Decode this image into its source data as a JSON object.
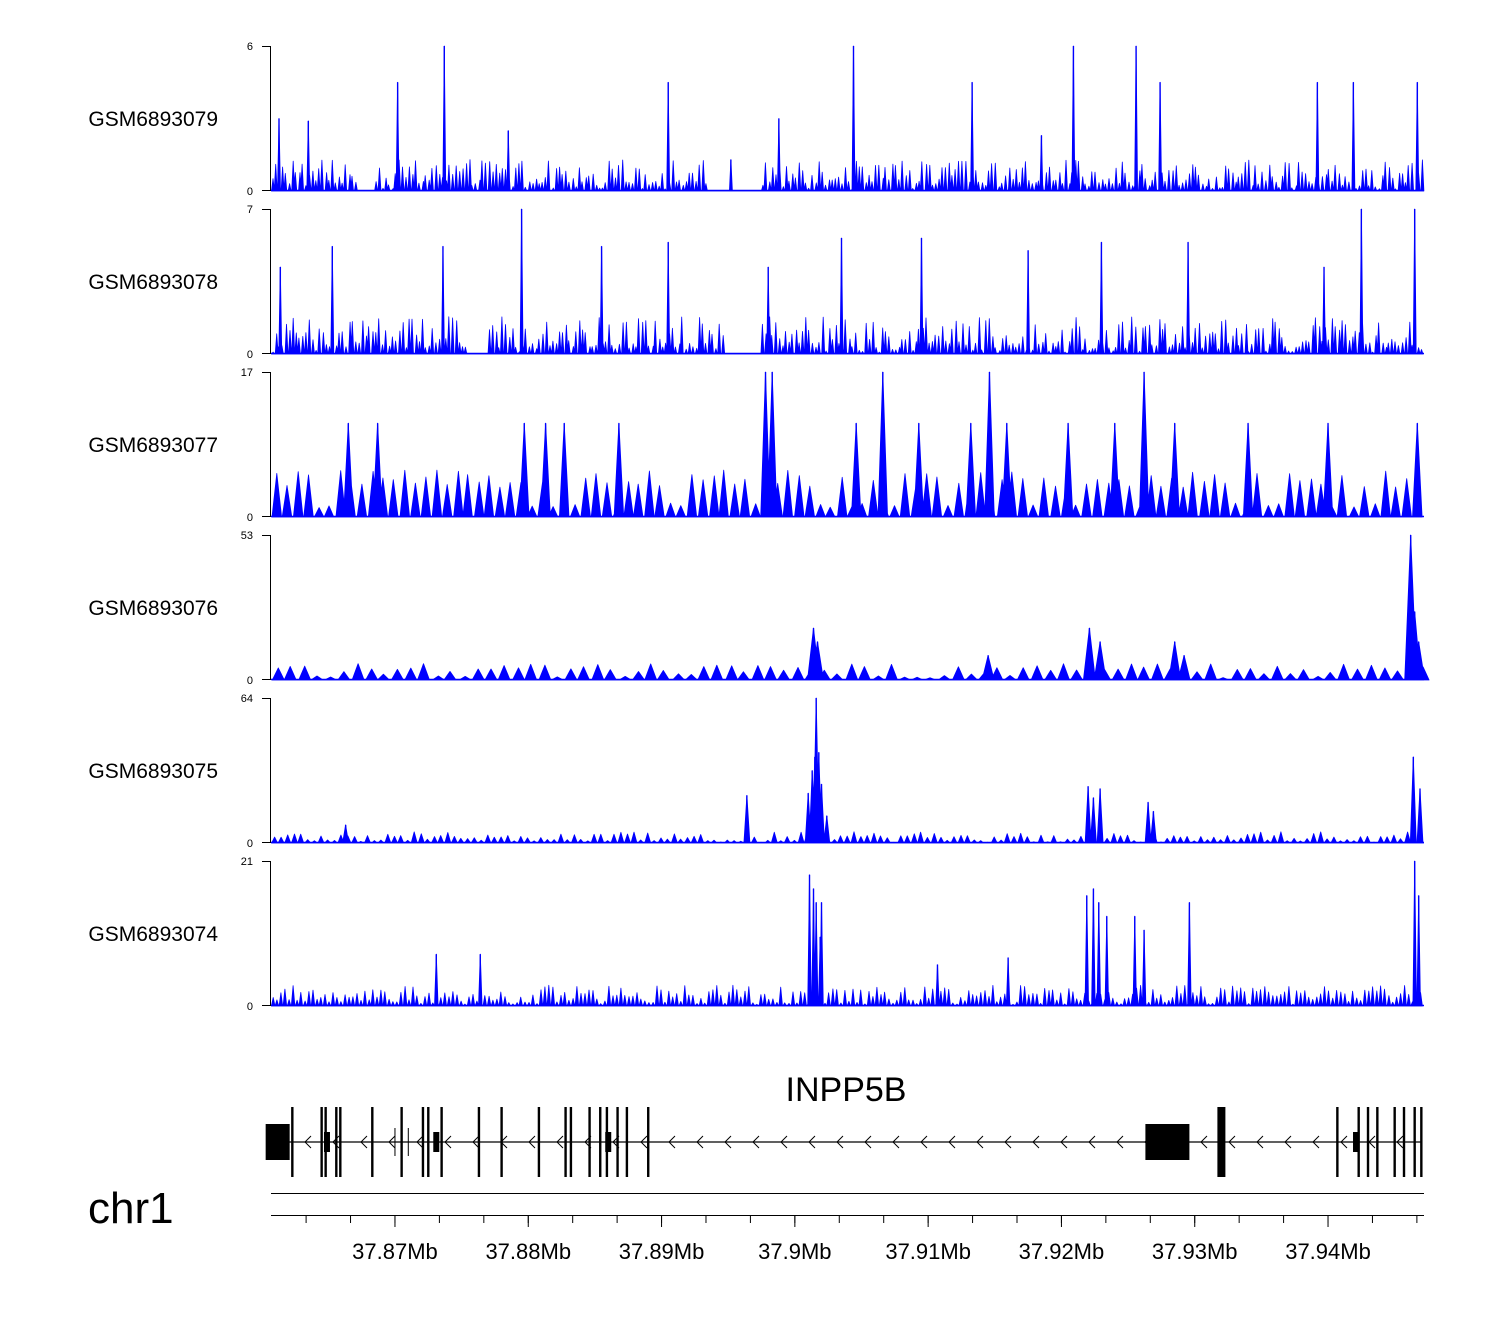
{
  "chart_data": {
    "type": "area",
    "title": "",
    "region": {
      "chromosome": "chr1",
      "start_mb": 37.8607,
      "end_mb": 37.9472
    },
    "tracks": [
      {
        "name": "GSM6893079",
        "ylim": [
          0,
          6
        ],
        "tick_labels": [
          "0",
          "6"
        ],
        "peaks": [
          [
            37.8613,
            3
          ],
          [
            37.8635,
            2.9
          ],
          [
            37.8702,
            4.5
          ],
          [
            37.8737,
            6
          ],
          [
            37.8785,
            2.5
          ],
          [
            37.8905,
            4.5
          ],
          [
            37.8952,
            1.3
          ],
          [
            37.8988,
            3
          ],
          [
            37.9044,
            6
          ],
          [
            37.9133,
            4.5
          ],
          [
            37.9185,
            2.3
          ],
          [
            37.9209,
            6
          ],
          [
            37.9256,
            6
          ],
          [
            37.9274,
            4.5
          ],
          [
            37.9392,
            4.5
          ],
          [
            37.9419,
            4.5
          ],
          [
            37.9467,
            4.5
          ]
        ],
        "spacing_kb": 0.25,
        "base": [
          0.3,
          1.3
        ],
        "gaps": [
          [
            37.8672,
            37.8684
          ],
          [
            37.8935,
            37.8975
          ]
        ],
        "jitter": 0.5
      },
      {
        "name": "GSM6893078",
        "ylim": [
          0,
          7
        ],
        "tick_labels": [
          "0",
          "7"
        ],
        "peaks": [
          [
            37.8614,
            4.2
          ],
          [
            37.8653,
            5.2
          ],
          [
            37.8736,
            5.2
          ],
          [
            37.8795,
            7
          ],
          [
            37.8855,
            5.2
          ],
          [
            37.8905,
            5.4
          ],
          [
            37.898,
            4.2
          ],
          [
            37.9035,
            5.6
          ],
          [
            37.9095,
            5.6
          ],
          [
            37.9175,
            5.0
          ],
          [
            37.923,
            5.4
          ],
          [
            37.9295,
            5.4
          ],
          [
            37.9397,
            4.2
          ],
          [
            37.9425,
            7
          ],
          [
            37.9465,
            7
          ]
        ],
        "spacing_kb": 0.25,
        "base": [
          0.3,
          1.8
        ],
        "gaps": [
          [
            37.8755,
            37.877
          ],
          [
            37.8948,
            37.8975
          ]
        ],
        "jitter": 0.5
      },
      {
        "name": "GSM6893077",
        "ylim": [
          0,
          17
        ],
        "tick_labels": [
          "0",
          "17"
        ],
        "peaks": [
          [
            37.8665,
            11
          ],
          [
            37.8687,
            11
          ],
          [
            37.8797,
            11
          ],
          [
            37.8813,
            11
          ],
          [
            37.8827,
            11
          ],
          [
            37.8868,
            11
          ],
          [
            37.8978,
            17
          ],
          [
            37.8983,
            17
          ],
          [
            37.9046,
            11
          ],
          [
            37.9066,
            17
          ],
          [
            37.9093,
            11
          ],
          [
            37.9132,
            11
          ],
          [
            37.9146,
            17
          ],
          [
            37.9159,
            11
          ],
          [
            37.9205,
            11
          ],
          [
            37.924,
            11
          ],
          [
            37.9262,
            17
          ],
          [
            37.9285,
            11
          ],
          [
            37.934,
            11
          ],
          [
            37.94,
            11
          ],
          [
            37.9467,
            11
          ]
        ],
        "spacing_kb": 0.8,
        "base": [
          3.5,
          5.5
        ],
        "gaps": [],
        "jitter": 0.15
      },
      {
        "name": "GSM6893076",
        "ylim": [
          0,
          53
        ],
        "tick_labels": [
          "0",
          "53"
        ],
        "peaks": [
          [
            37.9014,
            19
          ],
          [
            37.9017,
            14
          ],
          [
            37.9145,
            9
          ],
          [
            37.9221,
            19
          ],
          [
            37.9229,
            14
          ],
          [
            37.9285,
            14
          ],
          [
            37.9292,
            9
          ],
          [
            37.9462,
            53
          ],
          [
            37.9465,
            25
          ],
          [
            37.9468,
            14
          ]
        ],
        "spacing_kb": 1.0,
        "base": [
          2,
          6
        ],
        "gaps": [],
        "jitter": 0.15
      },
      {
        "name": "GSM6893075",
        "ylim": [
          0,
          64
        ],
        "tick_labels": [
          "0",
          "64"
        ],
        "peaks": [
          [
            37.8663,
            8
          ],
          [
            37.8964,
            21
          ],
          [
            37.901,
            22
          ],
          [
            37.9013,
            32
          ],
          [
            37.9015,
            38
          ],
          [
            37.9016,
            49
          ],
          [
            37.9016,
            64
          ],
          [
            37.9018,
            40
          ],
          [
            37.902,
            26
          ],
          [
            37.9024,
            12
          ],
          [
            37.922,
            25
          ],
          [
            37.9224,
            20
          ],
          [
            37.9229,
            24
          ],
          [
            37.9265,
            18
          ],
          [
            37.9269,
            14
          ],
          [
            37.9464,
            38
          ],
          [
            37.9469,
            24
          ]
        ],
        "spacing_kb": 0.5,
        "base": [
          1,
          5
        ],
        "gaps": [],
        "jitter": 0.1
      },
      {
        "name": "GSM6893074",
        "ylim": [
          0,
          21
        ],
        "tick_labels": [
          "0",
          "21"
        ],
        "peaks": [
          [
            37.8731,
            7.5
          ],
          [
            37.8764,
            7.5
          ],
          [
            37.9011,
            19
          ],
          [
            37.9014,
            17
          ],
          [
            37.9016,
            15
          ],
          [
            37.902,
            15
          ],
          [
            37.9019,
            10
          ],
          [
            37.9107,
            6
          ],
          [
            37.916,
            7
          ],
          [
            37.9219,
            16
          ],
          [
            37.9224,
            17
          ],
          [
            37.9228,
            15
          ],
          [
            37.9234,
            13
          ],
          [
            37.9255,
            13
          ],
          [
            37.9262,
            11
          ],
          [
            37.9296,
            15
          ],
          [
            37.9465,
            21
          ],
          [
            37.9468,
            16
          ]
        ],
        "spacing_kb": 0.3,
        "base": [
          0.8,
          3
        ],
        "gaps": [],
        "jitter": 0.1
      }
    ],
    "gene": {
      "name": "INPP5B",
      "strand": "-",
      "exons": [
        {
          "mb": 37.8621,
          "kind": "utr",
          "h": "thick"
        },
        {
          "mb": 37.8623,
          "kind": "exon"
        },
        {
          "mb": 37.8645,
          "kind": "exon"
        },
        {
          "mb": 37.8648,
          "kind": "exon"
        },
        {
          "mb": 37.8656,
          "kind": "exon"
        },
        {
          "mb": 37.8659,
          "kind": "exon"
        },
        {
          "mb": 37.8683,
          "kind": "exon"
        },
        {
          "mb": 37.8705,
          "kind": "exon"
        },
        {
          "mb": 37.8721,
          "kind": "exon"
        },
        {
          "mb": 37.8725,
          "kind": "exon"
        },
        {
          "mb": 37.8735,
          "kind": "exon"
        },
        {
          "mb": 37.8763,
          "kind": "exon"
        },
        {
          "mb": 37.878,
          "kind": "exon"
        },
        {
          "mb": 37.8808,
          "kind": "exon"
        },
        {
          "mb": 37.8828,
          "kind": "exon"
        },
        {
          "mb": 37.8832,
          "kind": "exon"
        },
        {
          "mb": 37.8846,
          "kind": "exon"
        },
        {
          "mb": 37.8854,
          "kind": "exon"
        },
        {
          "mb": 37.8859,
          "kind": "exon"
        },
        {
          "mb": 37.8867,
          "kind": "exon"
        },
        {
          "mb": 37.8874,
          "kind": "exon"
        },
        {
          "mb": 37.889,
          "kind": "exon"
        },
        {
          "mb": 37.9296,
          "kind": "utr",
          "h": "thick"
        },
        {
          "mb": 37.932,
          "kind": "utr",
          "h": "tall"
        },
        {
          "mb": 37.9407,
          "kind": "exon"
        },
        {
          "mb": 37.9423,
          "kind": "exon"
        },
        {
          "mb": 37.943,
          "kind": "exon"
        },
        {
          "mb": 37.9437,
          "kind": "exon"
        },
        {
          "mb": 37.945,
          "kind": "exon"
        },
        {
          "mb": 37.9457,
          "kind": "exon"
        },
        {
          "mb": 37.9465,
          "kind": "exon"
        },
        {
          "mb": 37.947,
          "kind": "exon"
        }
      ]
    },
    "xaxis": {
      "major_ticks": [
        37.87,
        37.88,
        37.89,
        37.9,
        37.91,
        37.92,
        37.93,
        37.94
      ],
      "major_labels": [
        "37.87Mb",
        "37.88Mb",
        "37.89Mb",
        "37.9Mb",
        "37.91Mb",
        "37.92Mb",
        "37.93Mb",
        "37.94Mb"
      ],
      "minor_step_mb": 0.0033333
    },
    "color": "#0000ff",
    "ink": "#000000"
  }
}
